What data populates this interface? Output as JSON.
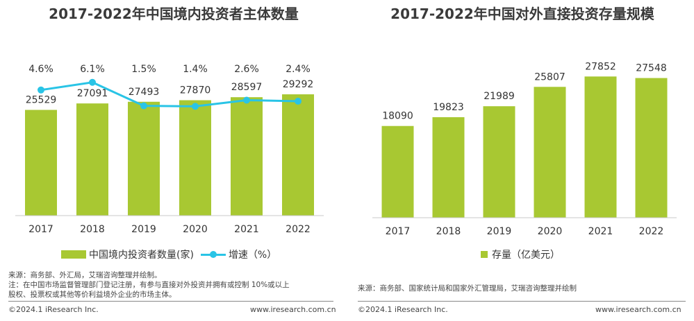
{
  "left": {
    "title": "2017-2022年中国境内投资者主体数量",
    "legend": {
      "bar": "中国境内投资者数量(家)",
      "line": "增速（%）"
    },
    "source": "来源：商务部、外汇局，艾瑞咨询整理并绘制。",
    "note_line1": "注：在中国市场监督管理部门登记注册，有参与直接对外投资并拥有或控制 10%或以上",
    "note_line2": "股权、投票权或其他等价利益境外企业的市场主体。",
    "copyright": "©2024.1 iResearch Inc.",
    "website": "www.iresearch.com.cn"
  },
  "right": {
    "title": "2017-2022年中国对外直接投资存量规模",
    "legend": {
      "bar": "存量（亿美元）"
    },
    "source": "来源：商务部、国家统计局和国家外汇管理局，艾瑞咨询整理并绘制",
    "copyright": "©2024.1 iResearch Inc.",
    "website": "www.iresearch.com.cn"
  },
  "colors": {
    "bar": "#a8c832",
    "line": "#29c4e6",
    "axis": "#c8c8c8",
    "text": "#333333"
  },
  "chart_data": [
    {
      "type": "bar",
      "title": "2017-2022年中国境内投资者主体数量",
      "categories": [
        "2017",
        "2018",
        "2019",
        "2020",
        "2021",
        "2022"
      ],
      "series": [
        {
          "name": "中国境内投资者数量(家)",
          "type": "bar",
          "values": [
            25529,
            27091,
            27493,
            27870,
            28597,
            29292
          ]
        },
        {
          "name": "增速（%）",
          "type": "line",
          "values": [
            4.6,
            6.1,
            1.5,
            1.4,
            2.6,
            2.4
          ],
          "labels": [
            "4.6%",
            "6.1%",
            "1.5%",
            "1.4%",
            "2.6%",
            "2.4%"
          ]
        }
      ],
      "ylim": [
        0,
        37000
      ],
      "line_ylim": [
        -20,
        10
      ],
      "legend": "bottom"
    },
    {
      "type": "bar",
      "title": "2017-2022年中国对外直接投资存量规模",
      "categories": [
        "2017",
        "2018",
        "2019",
        "2020",
        "2021",
        "2022"
      ],
      "series": [
        {
          "name": "存量（亿美元）",
          "values": [
            18090,
            19823,
            21989,
            25807,
            27852,
            27548
          ]
        }
      ],
      "ylim": [
        0,
        32000
      ],
      "legend": "bottom"
    }
  ]
}
